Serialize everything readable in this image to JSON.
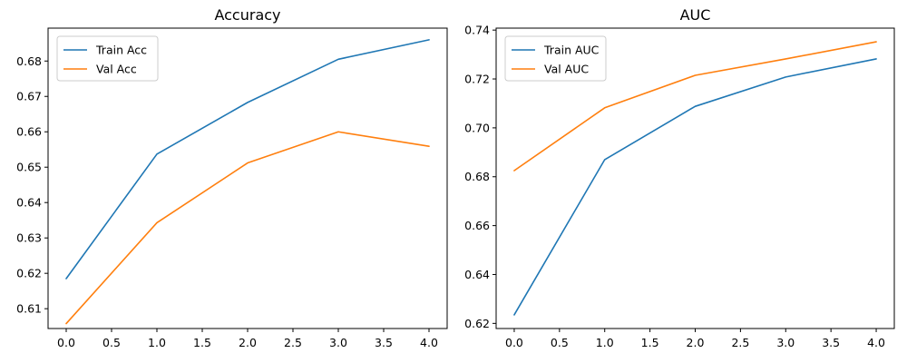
{
  "chart_data": [
    {
      "type": "line",
      "title": "Accuracy",
      "xlabel": "",
      "ylabel": "",
      "x": [
        0,
        1,
        2,
        3,
        4
      ],
      "series": [
        {
          "name": "Train Acc",
          "color": "#1f77b4",
          "values": [
            0.6185,
            0.6537,
            0.6683,
            0.6805,
            0.686
          ]
        },
        {
          "name": "Val Acc",
          "color": "#ff7f0e",
          "values": [
            0.6058,
            0.6343,
            0.6512,
            0.66,
            0.6559
          ]
        }
      ],
      "xlim": [
        -0.2,
        4.2
      ],
      "ylim": [
        0.6044,
        0.6893
      ],
      "xticks": [
        0.0,
        0.5,
        1.0,
        1.5,
        2.0,
        2.5,
        3.0,
        3.5,
        4.0
      ],
      "xtick_labels": [
        "0.0",
        "0.5",
        "1.0",
        "1.5",
        "2.0",
        "2.5",
        "3.0",
        "3.5",
        "4.0"
      ],
      "yticks": [
        0.61,
        0.62,
        0.63,
        0.64,
        0.65,
        0.66,
        0.67,
        0.68
      ],
      "ytick_labels": [
        "0.61",
        "0.62",
        "0.63",
        "0.64",
        "0.65",
        "0.66",
        "0.67",
        "0.68"
      ],
      "legend_position": "top-left",
      "grid": false
    },
    {
      "type": "line",
      "title": "AUC",
      "xlabel": "",
      "ylabel": "",
      "x": [
        0,
        1,
        2,
        3,
        4
      ],
      "series": [
        {
          "name": "Train AUC",
          "color": "#1f77b4",
          "values": [
            0.6235,
            0.687,
            0.7088,
            0.7208,
            0.7282
          ]
        },
        {
          "name": "Val AUC",
          "color": "#ff7f0e",
          "values": [
            0.6825,
            0.7082,
            0.7215,
            0.7282,
            0.7352
          ]
        }
      ],
      "xlim": [
        -0.2,
        4.2
      ],
      "ylim": [
        0.6179,
        0.7408
      ],
      "xticks": [
        0.0,
        0.5,
        1.0,
        1.5,
        2.0,
        2.5,
        3.0,
        3.5,
        4.0
      ],
      "xtick_labels": [
        "0.0",
        "0.5",
        "1.0",
        "1.5",
        "2.0",
        "2.5",
        "3.0",
        "3.5",
        "4.0"
      ],
      "yticks": [
        0.62,
        0.64,
        0.66,
        0.68,
        0.7,
        0.72,
        0.74
      ],
      "ytick_labels": [
        "0.62",
        "0.64",
        "0.66",
        "0.68",
        "0.70",
        "0.72",
        "0.74"
      ],
      "legend_position": "top-left",
      "grid": false
    }
  ]
}
